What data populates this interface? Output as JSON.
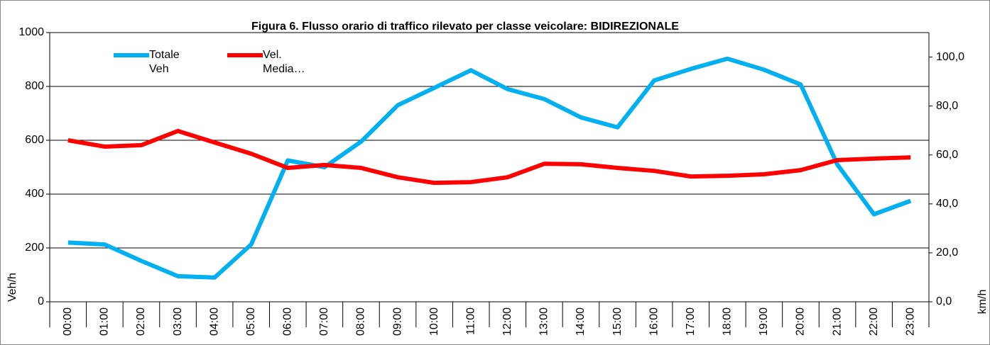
{
  "chart_data": {
    "type": "line",
    "title": "Figura 6. Flusso orario di traffico rilevato per classe veicolare: BIDIREZIONALE",
    "y_label": "Veh/h",
    "y2_label": "km/h",
    "categories": [
      "00:00",
      "01:00",
      "02:00",
      "03:00",
      "04:00",
      "05:00",
      "06:00",
      "07:00",
      "08:00",
      "09:00",
      "10:00",
      "11:00",
      "12:00",
      "13:00",
      "14:00",
      "15:00",
      "16:00",
      "17:00",
      "18:00",
      "19:00",
      "20:00",
      "21:00",
      "22:00",
      "23:00"
    ],
    "series": [
      {
        "name": "Totale Veh",
        "color": "#00b0f0",
        "values": [
          220,
          213,
          152,
          95,
          90,
          213,
          525,
          500,
          595,
          730,
          795,
          860,
          790,
          753,
          685,
          648,
          822,
          865,
          903,
          862,
          807,
          510,
          325,
          375
        ]
      },
      {
        "name": "Vel. Media…",
        "color": "#ff0000",
        "axis": "y2",
        "values": [
          66.0,
          63.4,
          64.0,
          69.8,
          65.1,
          60.5,
          54.7,
          55.9,
          54.7,
          50.9,
          48.6,
          48.9,
          50.9,
          56.4,
          56.2,
          54.7,
          53.5,
          51.2,
          51.5,
          52.1,
          53.8,
          57.9,
          58.5,
          59.0
        ]
      }
    ],
    "ylim": [
      0,
      1000
    ],
    "yticks": [
      0,
      200,
      400,
      600,
      800,
      1000
    ],
    "y2lim": [
      0,
      110
    ],
    "y2ticks": [
      {
        "value": 0,
        "label": "0,0"
      },
      {
        "value": 20,
        "label": "20,0"
      },
      {
        "value": 40,
        "label": "40,0"
      },
      {
        "value": 60,
        "label": "60,0"
      },
      {
        "value": 80,
        "label": "80,0"
      },
      {
        "value": 100,
        "label": "100,0"
      }
    ],
    "grid": true,
    "legend": "top-left"
  }
}
